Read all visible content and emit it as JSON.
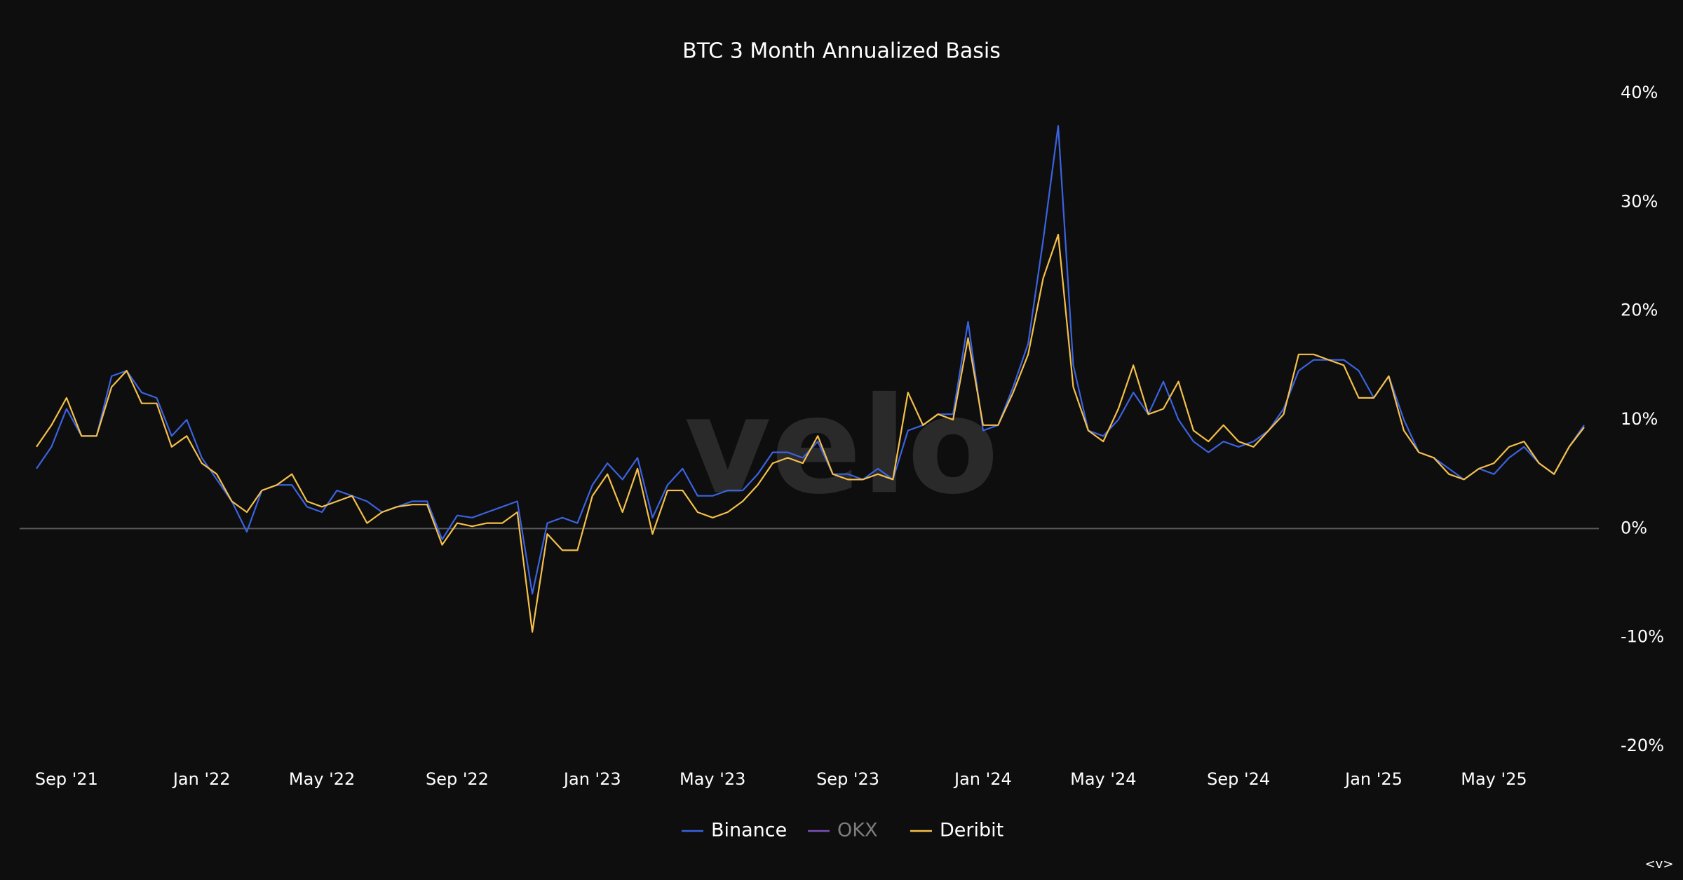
{
  "chart_data": {
    "type": "line",
    "title": "BTC 3 Month Annualized Basis",
    "watermark": "velo",
    "corner_text": "<v>",
    "categories": [
      null,
      null,
      "Sep '21",
      null,
      null,
      null,
      null,
      null,
      null,
      null,
      null,
      "Jan '22",
      null,
      null,
      null,
      null,
      null,
      null,
      null,
      "May '22",
      null,
      null,
      null,
      null,
      null,
      null,
      null,
      null,
      "Sep '22",
      null,
      null,
      null,
      null,
      null,
      null,
      null,
      null,
      "Jan '23",
      null,
      null,
      null,
      null,
      null,
      null,
      null,
      "May '23",
      null,
      null,
      null,
      null,
      null,
      null,
      null,
      null,
      "Sep '23",
      null,
      null,
      null,
      null,
      null,
      null,
      null,
      null,
      "Jan '24",
      null,
      null,
      null,
      null,
      null,
      null,
      null,
      "May '24",
      null,
      null,
      null,
      null,
      null,
      null,
      null,
      null,
      "Sep '24",
      null,
      null,
      null,
      null,
      null,
      null,
      null,
      null,
      "Jan '25",
      null,
      null,
      null,
      null,
      null,
      null,
      null,
      "May '25",
      null,
      null,
      null,
      null,
      null,
      null
    ],
    "series": [
      {
        "name": "Binance",
        "color": "#3b63e0",
        "values": [
          5.5,
          7.5,
          11,
          8.5,
          8.5,
          14,
          14.5,
          12.5,
          12,
          8.5,
          10,
          6.5,
          4.5,
          2.5,
          -0.3,
          3.5,
          4,
          4,
          2,
          1.5,
          3.5,
          3,
          2.5,
          1.5,
          2,
          2.5,
          2.5,
          -1,
          1.2,
          1,
          1.5,
          2,
          2.5,
          -6,
          0.5,
          1,
          0.5,
          4,
          6,
          4.5,
          6.5,
          1,
          4,
          5.5,
          3,
          3,
          3.5,
          3.5,
          5,
          7,
          7,
          6.5,
          8,
          5,
          5,
          4.5,
          5.5,
          4.5,
          9,
          9.5,
          10.5,
          10.5,
          19,
          9,
          9.5,
          13,
          17,
          26.5,
          37,
          15,
          9,
          8.5,
          10,
          12.5,
          10.5,
          13.5,
          10,
          8,
          7,
          8,
          7.5,
          8,
          9,
          11,
          14.5,
          15.5,
          15.5,
          15.5,
          14.5,
          12,
          14,
          10,
          7,
          6.5,
          5.5,
          4.5,
          5.5,
          5,
          6.5,
          7.5,
          6,
          5,
          7.5,
          9.5
        ]
      },
      {
        "name": "OKX",
        "color": "#7a4fb5",
        "hidden": true
      },
      {
        "name": "Deribit",
        "color": "#f5c04a",
        "values": [
          7.5,
          9.5,
          12,
          8.5,
          8.5,
          13,
          14.5,
          11.5,
          11.5,
          7.5,
          8.5,
          6,
          5,
          2.5,
          1.5,
          3.5,
          4,
          5,
          2.5,
          2,
          2.5,
          3,
          0.5,
          1.5,
          2,
          2.2,
          2.2,
          -1.5,
          0.5,
          0.2,
          0.5,
          0.5,
          1.5,
          -9.5,
          -0.5,
          -2,
          -2,
          3,
          5,
          1.5,
          5.5,
          -0.5,
          3.5,
          3.5,
          1.5,
          1,
          1.5,
          2.5,
          4,
          6,
          6.5,
          6,
          8.5,
          5,
          4.5,
          4.5,
          5,
          4.5,
          12.5,
          9.5,
          10.5,
          10,
          17.5,
          9.5,
          9.5,
          12.5,
          16,
          23,
          27,
          13,
          9,
          8,
          11,
          15,
          10.5,
          11,
          13.5,
          9,
          8,
          9.5,
          8,
          7.5,
          9,
          10.5,
          16,
          16,
          15.5,
          15,
          12,
          12,
          14,
          9,
          7,
          6.5,
          5,
          4.5,
          5.5,
          6,
          7.5,
          8,
          6,
          5,
          7.5,
          9.3
        ]
      }
    ],
    "ylim": [
      -20,
      40
    ],
    "yticks": [
      {
        "value": -20,
        "label": "-20%"
      },
      {
        "value": -10,
        "label": "-10%"
      },
      {
        "value": 0,
        "label": "0%"
      },
      {
        "value": 10,
        "label": "10%"
      },
      {
        "value": 20,
        "label": "20%"
      },
      {
        "value": 30,
        "label": "30%"
      },
      {
        "value": 40,
        "label": "40%"
      }
    ],
    "zero_line": true
  }
}
